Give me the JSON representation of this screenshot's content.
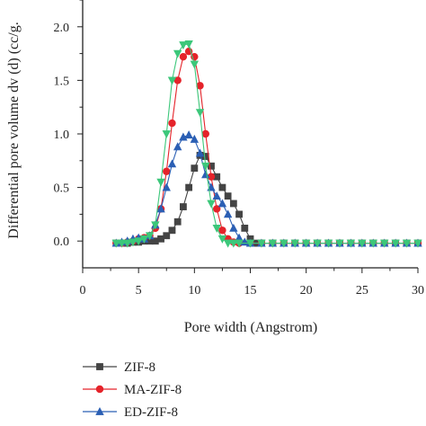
{
  "chart_data": {
    "type": "line",
    "title": "",
    "xlabel": "Pore width (Angstrom)",
    "ylabel": "Differential pore volume dv (d) (cc/g.",
    "xlim": [
      0,
      30
    ],
    "ylim": [
      -0.25,
      2.25
    ],
    "xticks": [
      "0",
      "5",
      "10",
      "15",
      "20",
      "25",
      "30"
    ],
    "yticks": [
      "0.0",
      "0.5",
      "1.0",
      "1.5",
      "2.0"
    ],
    "grid": false,
    "legend_position": "bottom-left",
    "series": [
      {
        "name": "ZIF-8",
        "marker": "square",
        "color": "#444444",
        "x": [
          3,
          3.5,
          4,
          4.5,
          5,
          5.5,
          6,
          6.5,
          7,
          7.5,
          8,
          8.5,
          9,
          9.5,
          10,
          10.5,
          11,
          11.5,
          12,
          12.5,
          13,
          13.5,
          14,
          14.5,
          15,
          15.5,
          16,
          17,
          18,
          19,
          20,
          21,
          22,
          23,
          24,
          25,
          26,
          27,
          28,
          29,
          30
        ],
        "y": [
          -0.02,
          -0.02,
          -0.02,
          -0.01,
          -0.01,
          0.0,
          0.0,
          0.0,
          0.02,
          0.05,
          0.1,
          0.18,
          0.32,
          0.5,
          0.68,
          0.8,
          0.79,
          0.7,
          0.6,
          0.5,
          0.42,
          0.35,
          0.25,
          0.12,
          0.02,
          -0.02,
          -0.02,
          -0.02,
          -0.02,
          -0.02,
          -0.02,
          -0.02,
          -0.02,
          -0.02,
          -0.02,
          -0.02,
          -0.02,
          -0.02,
          -0.02,
          -0.02,
          -0.02
        ]
      },
      {
        "name": "MA-ZIF-8",
        "marker": "circle",
        "color": "#e5232a",
        "x": [
          3,
          3.5,
          4,
          4.5,
          5,
          5.5,
          6,
          6.5,
          7,
          7.5,
          8,
          8.5,
          9,
          9.5,
          10,
          10.5,
          11,
          11.5,
          12,
          12.5,
          13,
          13.5,
          14,
          15,
          16,
          17,
          18,
          19,
          20,
          21,
          22,
          23,
          24,
          25,
          26,
          27,
          28,
          29,
          30
        ],
        "y": [
          -0.02,
          -0.02,
          -0.01,
          0.0,
          0.02,
          0.03,
          0.05,
          0.12,
          0.3,
          0.65,
          1.1,
          1.5,
          1.72,
          1.77,
          1.72,
          1.45,
          1.0,
          0.6,
          0.3,
          0.1,
          0.02,
          -0.01,
          -0.02,
          -0.02,
          -0.02,
          -0.02,
          -0.02,
          -0.02,
          -0.02,
          -0.02,
          -0.02,
          -0.02,
          -0.02,
          -0.02,
          -0.02,
          -0.02,
          -0.02,
          -0.02,
          -0.02
        ]
      },
      {
        "name": "ED-ZIF-8",
        "marker": "triangle",
        "color": "#2b5fb4",
        "x": [
          3,
          3.5,
          4,
          4.5,
          5,
          5.5,
          6,
          6.5,
          7,
          7.5,
          8,
          8.5,
          9,
          9.5,
          10,
          10.5,
          11,
          11.5,
          12,
          12.5,
          13,
          13.5,
          14,
          14.5,
          15,
          16,
          17,
          18,
          19,
          20,
          21,
          22,
          23,
          24,
          25,
          26,
          27,
          28,
          29,
          30
        ],
        "y": [
          -0.02,
          -0.01,
          0.0,
          0.02,
          0.03,
          0.02,
          0.05,
          0.15,
          0.3,
          0.5,
          0.72,
          0.88,
          0.97,
          0.99,
          0.95,
          0.82,
          0.62,
          0.5,
          0.42,
          0.35,
          0.25,
          0.12,
          0.03,
          -0.01,
          -0.02,
          -0.02,
          -0.02,
          -0.02,
          -0.02,
          -0.02,
          -0.02,
          -0.02,
          -0.02,
          -0.02,
          -0.02,
          -0.02,
          -0.02,
          -0.02,
          -0.02,
          -0.02
        ]
      },
      {
        "name": "",
        "marker": "triangle-down",
        "color": "#3cc77a",
        "x": [
          3,
          3.5,
          4,
          4.5,
          5,
          5.5,
          6,
          6.5,
          7,
          7.5,
          8,
          8.5,
          9,
          9.5,
          10,
          10.5,
          11,
          11.5,
          12,
          12.5,
          13,
          13.5,
          14,
          15,
          16,
          17,
          18,
          19,
          20,
          21,
          22,
          23,
          24,
          25,
          26,
          27,
          28,
          29,
          30
        ],
        "y": [
          -0.02,
          -0.02,
          -0.02,
          -0.01,
          0.0,
          0.02,
          0.05,
          0.15,
          0.55,
          1.0,
          1.5,
          1.75,
          1.83,
          1.84,
          1.65,
          1.2,
          0.7,
          0.35,
          0.12,
          0.02,
          -0.02,
          -0.02,
          -0.02,
          -0.02,
          -0.02,
          -0.02,
          -0.02,
          -0.02,
          -0.02,
          -0.02,
          -0.02,
          -0.02,
          -0.02,
          -0.02,
          -0.02,
          -0.02,
          -0.02,
          -0.02,
          -0.02
        ]
      }
    ]
  }
}
